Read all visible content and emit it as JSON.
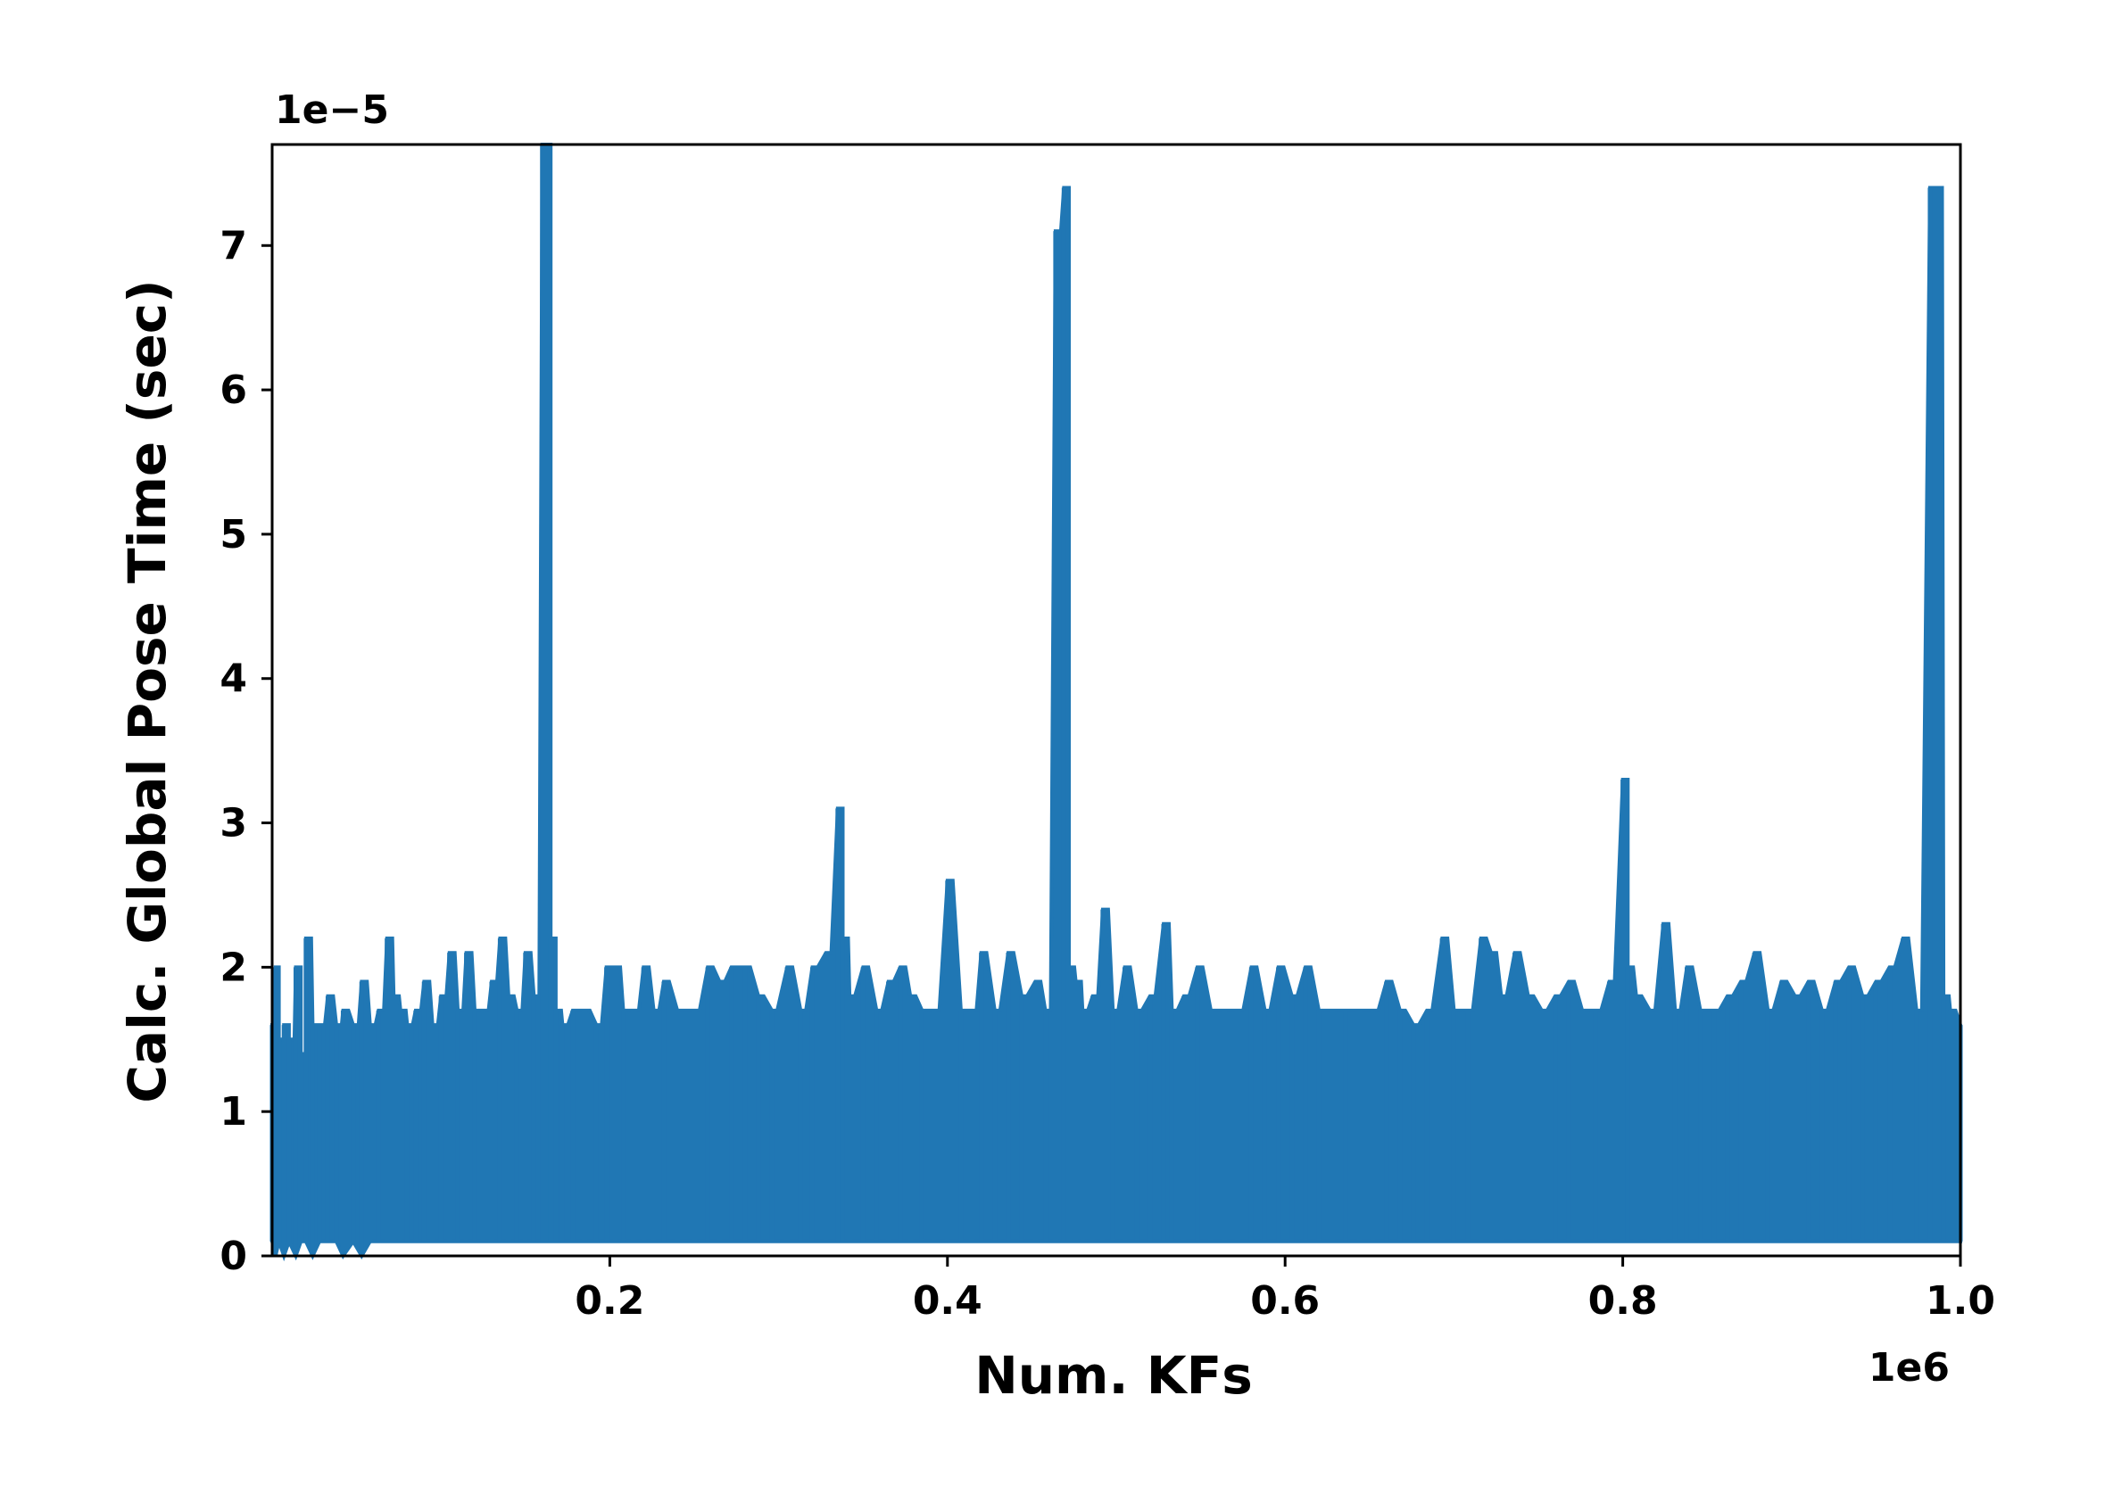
{
  "chart_data": {
    "type": "line",
    "title": "",
    "xlabel": "Num. KFs",
    "ylabel": "Calc. Global Pose Time (sec)",
    "x_offset_label": "1e6",
    "y_offset_label": "1e−5",
    "xlim": [
      0.0,
      1.0
    ],
    "ylim": [
      0,
      7.7
    ],
    "x_ticks": [
      0.2,
      0.4,
      0.6,
      0.8,
      1.0
    ],
    "x_tick_labels": [
      "0.2",
      "0.4",
      "0.6",
      "0.8",
      "1.0"
    ],
    "y_ticks": [
      0,
      1,
      2,
      3,
      4,
      5,
      6,
      7
    ],
    "y_tick_labels": [
      "0",
      "1",
      "2",
      "3",
      "4",
      "5",
      "6",
      "7"
    ],
    "grid": false,
    "legend": "none",
    "series_color": "#2077b4",
    "series": [
      {
        "x": [
          0.0,
          0.002,
          0.004,
          0.007,
          0.01,
          0.014,
          0.017,
          0.02,
          0.024,
          0.028,
          0.033,
          0.038,
          0.042,
          0.048,
          0.053,
          0.058,
          0.063,
          0.068,
          0.072,
          0.076,
          0.08,
          0.085,
          0.09,
          0.095,
          0.1,
          0.105,
          0.11,
          0.115,
          0.12,
          0.125,
          0.13,
          0.135,
          0.14,
          0.145,
          0.15,
          0.155,
          0.16,
          0.162,
          0.165,
          0.168,
          0.172,
          0.178,
          0.185,
          0.192,
          0.198,
          0.203,
          0.208,
          0.214,
          0.22,
          0.226,
          0.232,
          0.24,
          0.25,
          0.258,
          0.265,
          0.272,
          0.28,
          0.288,
          0.296,
          0.305,
          0.313,
          0.32,
          0.328,
          0.335,
          0.338,
          0.342,
          0.35,
          0.358,
          0.365,
          0.372,
          0.378,
          0.385,
          0.392,
          0.4,
          0.408,
          0.414,
          0.42,
          0.428,
          0.436,
          0.444,
          0.452,
          0.458,
          0.464,
          0.469,
          0.472,
          0.476,
          0.48,
          0.486,
          0.492,
          0.498,
          0.505,
          0.512,
          0.52,
          0.528,
          0.533,
          0.54,
          0.548,
          0.556,
          0.564,
          0.572,
          0.58,
          0.588,
          0.596,
          0.604,
          0.612,
          0.62,
          0.628,
          0.636,
          0.644,
          0.652,
          0.66,
          0.668,
          0.676,
          0.684,
          0.693,
          0.7,
          0.708,
          0.716,
          0.722,
          0.728,
          0.736,
          0.744,
          0.752,
          0.76,
          0.768,
          0.776,
          0.784,
          0.792,
          0.8,
          0.803,
          0.808,
          0.816,
          0.824,
          0.831,
          0.838,
          0.846,
          0.854,
          0.862,
          0.87,
          0.878,
          0.886,
          0.894,
          0.902,
          0.91,
          0.918,
          0.926,
          0.934,
          0.942,
          0.95,
          0.958,
          0.966,
          0.974,
          0.982,
          0.986,
          0.99,
          0.994,
          1.0
        ],
        "y_max": [
          1.6,
          2.0,
          1.5,
          1.6,
          1.5,
          2.0,
          1.4,
          2.2,
          1.6,
          1.6,
          1.8,
          1.6,
          1.7,
          1.6,
          1.9,
          1.6,
          1.7,
          2.2,
          1.8,
          1.7,
          1.6,
          1.7,
          1.9,
          1.6,
          1.8,
          2.1,
          1.7,
          2.1,
          1.7,
          1.7,
          1.9,
          2.2,
          1.8,
          1.7,
          2.1,
          1.8,
          7.7,
          7.7,
          2.2,
          1.7,
          1.6,
          1.7,
          1.7,
          1.6,
          2.0,
          2.0,
          1.7,
          1.7,
          2.0,
          1.7,
          1.9,
          1.7,
          1.7,
          2.0,
          1.9,
          2.0,
          2.0,
          1.8,
          1.7,
          2.0,
          1.7,
          2.0,
          2.1,
          3.1,
          2.2,
          1.8,
          2.0,
          1.7,
          1.9,
          2.0,
          1.8,
          1.7,
          1.7,
          2.6,
          1.7,
          1.7,
          2.1,
          1.7,
          2.1,
          1.8,
          1.9,
          1.7,
          7.1,
          7.4,
          2.0,
          1.9,
          1.7,
          1.8,
          2.4,
          1.7,
          2.0,
          1.7,
          1.8,
          2.3,
          1.7,
          1.8,
          2.0,
          1.7,
          1.7,
          1.7,
          2.0,
          1.7,
          2.0,
          1.8,
          2.0,
          1.7,
          1.7,
          1.7,
          1.7,
          1.7,
          1.9,
          1.7,
          1.6,
          1.7,
          2.2,
          1.7,
          1.7,
          2.2,
          2.1,
          1.8,
          2.1,
          1.8,
          1.7,
          1.8,
          1.9,
          1.7,
          1.7,
          1.9,
          3.3,
          2.0,
          1.8,
          1.7,
          2.3,
          1.7,
          2.0,
          1.7,
          1.7,
          1.8,
          1.9,
          2.1,
          1.7,
          1.9,
          1.8,
          1.9,
          1.7,
          1.9,
          2.0,
          1.8,
          1.9,
          2.0,
          2.2,
          1.7,
          7.4,
          7.4,
          1.8,
          1.7,
          1.6
        ],
        "y_min": [
          0.1,
          0.0,
          0.1,
          0.0,
          0.1,
          0.0,
          0.1,
          0.1,
          0.0,
          0.1,
          0.1,
          0.1,
          0.0,
          0.1,
          0.0,
          0.1,
          0.1,
          0.1,
          0.1,
          0.1,
          0.1,
          0.1,
          0.1,
          0.1,
          0.1,
          0.1,
          0.1,
          0.1,
          0.1,
          0.1,
          0.1,
          0.1,
          0.1,
          0.1,
          0.1,
          0.1,
          0.1,
          0.1,
          0.1,
          0.1,
          0.1,
          0.1,
          0.1,
          0.1,
          0.1,
          0.1,
          0.1,
          0.1,
          0.1,
          0.1,
          0.1,
          0.1,
          0.1,
          0.1,
          0.1,
          0.1,
          0.1,
          0.1,
          0.1,
          0.1,
          0.1,
          0.1,
          0.1,
          0.1,
          0.1,
          0.1,
          0.1,
          0.1,
          0.1,
          0.1,
          0.1,
          0.1,
          0.1,
          0.1,
          0.1,
          0.1,
          0.1,
          0.1,
          0.1,
          0.1,
          0.1,
          0.1,
          0.1,
          0.1,
          0.1,
          0.1,
          0.1,
          0.1,
          0.1,
          0.1,
          0.1,
          0.1,
          0.1,
          0.1,
          0.1,
          0.1,
          0.1,
          0.1,
          0.1,
          0.1,
          0.1,
          0.1,
          0.1,
          0.1,
          0.1,
          0.1,
          0.1,
          0.1,
          0.1,
          0.1,
          0.1,
          0.1,
          0.1,
          0.1,
          0.1,
          0.1,
          0.1,
          0.1,
          0.1,
          0.1,
          0.1,
          0.1,
          0.1,
          0.1,
          0.1,
          0.1,
          0.1,
          0.1,
          0.1,
          0.1,
          0.1,
          0.1,
          0.1,
          0.1,
          0.1,
          0.1,
          0.1,
          0.1,
          0.1,
          0.1,
          0.1,
          0.1,
          0.1,
          0.1,
          0.1,
          0.1,
          0.1,
          0.1,
          0.1,
          0.1,
          0.1,
          0.1,
          0.1,
          0.1,
          0.1,
          0.1,
          0.1,
          0.1,
          0.1
        ]
      }
    ]
  }
}
